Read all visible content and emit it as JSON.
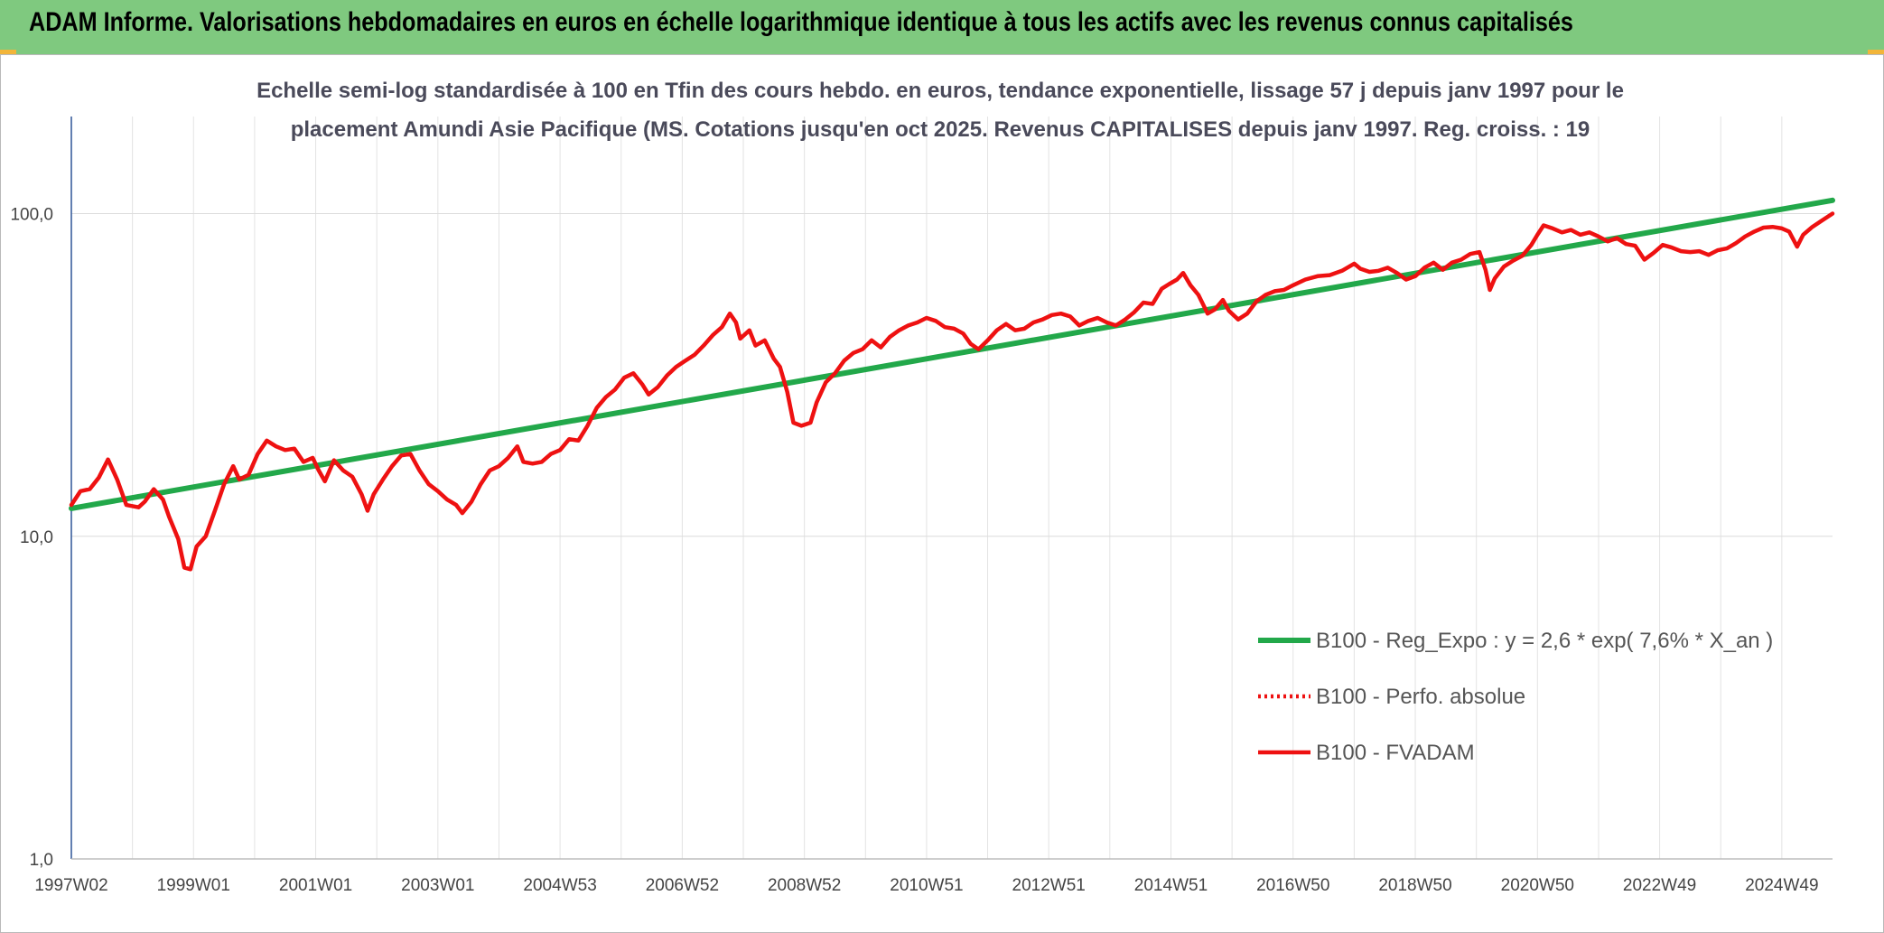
{
  "header": {
    "title": "ADAM Informe. Valorisations hebdomadaires en euros en échelle logarithmique identique à tous les actifs avec les revenus connus capitalisés",
    "color": "#7fc97f"
  },
  "chart_data": {
    "type": "line",
    "title_lines": [
      "Echelle semi-log standardisée à 100 en Tfin des cours hebdo. en euros, tendance exponentielle, lissage 57 j depuis janv 1997 pour le",
      "placement Amundi Asie Pacifique (MS. Cotations jusqu'en oct 2025. Revenus CAPITALISES depuis janv 1997. Reg. croiss. : 19"
    ],
    "yscale": "log",
    "ylim": [
      1,
      200
    ],
    "y_ticks": [
      {
        "value": 1,
        "label": "1,0"
      },
      {
        "value": 10,
        "label": "10,0"
      },
      {
        "value": 100,
        "label": "100,0"
      }
    ],
    "xlim": [
      1997.0,
      2025.83
    ],
    "x_ticks": [
      {
        "year": 1997.0,
        "label": "1997W02"
      },
      {
        "year": 1999.0,
        "label": "1999W01"
      },
      {
        "year": 2001.0,
        "label": "2001W01"
      },
      {
        "year": 2003.0,
        "label": "2003W01"
      },
      {
        "year": 2005.0,
        "label": "2004W53"
      },
      {
        "year": 2007.0,
        "label": "2006W52"
      },
      {
        "year": 2009.0,
        "label": "2008W52"
      },
      {
        "year": 2011.0,
        "label": "2010W51"
      },
      {
        "year": 2013.0,
        "label": "2012W51"
      },
      {
        "year": 2015.0,
        "label": "2014W51"
      },
      {
        "year": 2017.0,
        "label": "2016W50"
      },
      {
        "year": 2019.0,
        "label": "2018W50"
      },
      {
        "year": 2021.0,
        "label": "2020W50"
      },
      {
        "year": 2023.0,
        "label": "2022W49"
      },
      {
        "year": 2025.0,
        "label": "2024W49"
      }
    ],
    "grid": true,
    "legend_position": "bottom-right",
    "series": [
      {
        "name": "B100 - Reg_Expo : y = 2,6 * exp( 7,6% *  X_an )",
        "color": "#22a84a",
        "style": "solid",
        "points": [
          [
            1997.0,
            12.2
          ],
          [
            2025.83,
            110.0
          ]
        ]
      },
      {
        "name": "B100 - Perfo. absolue",
        "color": "#ee1111",
        "style": "dotted",
        "points": []
      },
      {
        "name": "B100 - FVADAM",
        "color": "#ee1111",
        "style": "solid",
        "points": [
          [
            1997.0,
            12.5
          ],
          [
            1997.15,
            13.8
          ],
          [
            1997.3,
            14.0
          ],
          [
            1997.45,
            15.2
          ],
          [
            1997.6,
            17.3
          ],
          [
            1997.75,
            15.0
          ],
          [
            1997.9,
            12.5
          ],
          [
            1998.1,
            12.3
          ],
          [
            1998.2,
            12.8
          ],
          [
            1998.35,
            14.0
          ],
          [
            1998.5,
            13.0
          ],
          [
            1998.6,
            11.5
          ],
          [
            1998.75,
            9.8
          ],
          [
            1998.85,
            8.0
          ],
          [
            1998.95,
            7.9
          ],
          [
            1999.05,
            9.3
          ],
          [
            1999.2,
            10.0
          ],
          [
            1999.35,
            12.0
          ],
          [
            1999.5,
            14.5
          ],
          [
            1999.65,
            16.5
          ],
          [
            1999.75,
            15.0
          ],
          [
            1999.9,
            15.5
          ],
          [
            2000.05,
            18.0
          ],
          [
            2000.2,
            19.8
          ],
          [
            2000.35,
            19.0
          ],
          [
            2000.5,
            18.5
          ],
          [
            2000.65,
            18.7
          ],
          [
            2000.8,
            17.0
          ],
          [
            2000.95,
            17.5
          ],
          [
            2001.05,
            16.0
          ],
          [
            2001.15,
            14.8
          ],
          [
            2001.3,
            17.2
          ],
          [
            2001.45,
            16.0
          ],
          [
            2001.6,
            15.3
          ],
          [
            2001.75,
            13.5
          ],
          [
            2001.85,
            12.0
          ],
          [
            2001.95,
            13.5
          ],
          [
            2002.1,
            15.0
          ],
          [
            2002.25,
            16.5
          ],
          [
            2002.4,
            17.8
          ],
          [
            2002.55,
            18.0
          ],
          [
            2002.7,
            16.0
          ],
          [
            2002.85,
            14.5
          ],
          [
            2003.0,
            13.8
          ],
          [
            2003.15,
            13.0
          ],
          [
            2003.3,
            12.5
          ],
          [
            2003.4,
            11.8
          ],
          [
            2003.55,
            12.8
          ],
          [
            2003.7,
            14.5
          ],
          [
            2003.85,
            16.0
          ],
          [
            2004.0,
            16.5
          ],
          [
            2004.15,
            17.5
          ],
          [
            2004.3,
            19.0
          ],
          [
            2004.4,
            17.0
          ],
          [
            2004.55,
            16.8
          ],
          [
            2004.7,
            17.0
          ],
          [
            2004.85,
            18.0
          ],
          [
            2005.0,
            18.5
          ],
          [
            2005.15,
            20.0
          ],
          [
            2005.3,
            19.8
          ],
          [
            2005.45,
            22.0
          ],
          [
            2005.6,
            25.0
          ],
          [
            2005.75,
            27.0
          ],
          [
            2005.9,
            28.5
          ],
          [
            2006.05,
            31.0
          ],
          [
            2006.2,
            32.0
          ],
          [
            2006.35,
            29.5
          ],
          [
            2006.45,
            27.5
          ],
          [
            2006.6,
            29.0
          ],
          [
            2006.75,
            31.5
          ],
          [
            2006.9,
            33.5
          ],
          [
            2007.05,
            35.0
          ],
          [
            2007.2,
            36.5
          ],
          [
            2007.35,
            39.0
          ],
          [
            2007.5,
            42.0
          ],
          [
            2007.65,
            44.5
          ],
          [
            2007.78,
            49.0
          ],
          [
            2007.88,
            46.0
          ],
          [
            2007.95,
            41.0
          ],
          [
            2008.1,
            43.5
          ],
          [
            2008.2,
            39.0
          ],
          [
            2008.35,
            40.5
          ],
          [
            2008.5,
            35.5
          ],
          [
            2008.6,
            33.5
          ],
          [
            2008.72,
            28.0
          ],
          [
            2008.82,
            22.5
          ],
          [
            2008.95,
            22.0
          ],
          [
            2009.1,
            22.5
          ],
          [
            2009.2,
            26.0
          ],
          [
            2009.35,
            30.0
          ],
          [
            2009.5,
            32.0
          ],
          [
            2009.65,
            35.0
          ],
          [
            2009.8,
            37.0
          ],
          [
            2009.95,
            38.0
          ],
          [
            2010.1,
            40.5
          ],
          [
            2010.25,
            38.5
          ],
          [
            2010.4,
            41.5
          ],
          [
            2010.55,
            43.5
          ],
          [
            2010.7,
            45.0
          ],
          [
            2010.85,
            46.0
          ],
          [
            2011.0,
            47.5
          ],
          [
            2011.15,
            46.5
          ],
          [
            2011.3,
            44.5
          ],
          [
            2011.45,
            44.0
          ],
          [
            2011.6,
            42.5
          ],
          [
            2011.72,
            39.5
          ],
          [
            2011.85,
            38.0
          ],
          [
            2012.0,
            40.5
          ],
          [
            2012.15,
            43.5
          ],
          [
            2012.3,
            45.5
          ],
          [
            2012.45,
            43.5
          ],
          [
            2012.6,
            44.0
          ],
          [
            2012.75,
            46.0
          ],
          [
            2012.9,
            47.0
          ],
          [
            2013.05,
            48.5
          ],
          [
            2013.2,
            49.0
          ],
          [
            2013.35,
            48.0
          ],
          [
            2013.5,
            45.0
          ],
          [
            2013.65,
            46.5
          ],
          [
            2013.8,
            47.5
          ],
          [
            2013.95,
            46.0
          ],
          [
            2014.1,
            45.0
          ],
          [
            2014.25,
            47.0
          ],
          [
            2014.4,
            49.5
          ],
          [
            2014.55,
            53.0
          ],
          [
            2014.7,
            52.5
          ],
          [
            2014.85,
            58.5
          ],
          [
            2014.97,
            60.5
          ],
          [
            2015.1,
            62.5
          ],
          [
            2015.2,
            65.5
          ],
          [
            2015.32,
            60.0
          ],
          [
            2015.45,
            56.0
          ],
          [
            2015.6,
            49.0
          ],
          [
            2015.72,
            50.5
          ],
          [
            2015.85,
            54.0
          ],
          [
            2015.95,
            50.0
          ],
          [
            2016.1,
            47.0
          ],
          [
            2016.25,
            49.0
          ],
          [
            2016.4,
            53.5
          ],
          [
            2016.55,
            56.0
          ],
          [
            2016.7,
            57.5
          ],
          [
            2016.85,
            58.0
          ],
          [
            2017.0,
            60.0
          ],
          [
            2017.2,
            62.5
          ],
          [
            2017.4,
            64.0
          ],
          [
            2017.6,
            64.5
          ],
          [
            2017.8,
            66.5
          ],
          [
            2018.0,
            70.0
          ],
          [
            2018.1,
            67.5
          ],
          [
            2018.25,
            66.0
          ],
          [
            2018.4,
            66.5
          ],
          [
            2018.55,
            68.0
          ],
          [
            2018.7,
            65.5
          ],
          [
            2018.85,
            62.5
          ],
          [
            2019.0,
            64.0
          ],
          [
            2019.15,
            68.0
          ],
          [
            2019.3,
            70.5
          ],
          [
            2019.45,
            67.0
          ],
          [
            2019.6,
            70.5
          ],
          [
            2019.75,
            72.0
          ],
          [
            2019.9,
            75.0
          ],
          [
            2020.05,
            76.0
          ],
          [
            2020.15,
            67.0
          ],
          [
            2020.22,
            58.0
          ],
          [
            2020.3,
            63.0
          ],
          [
            2020.45,
            68.5
          ],
          [
            2020.6,
            71.5
          ],
          [
            2020.75,
            74.0
          ],
          [
            2020.9,
            80.0
          ],
          [
            2021.0,
            86.0
          ],
          [
            2021.1,
            92.0
          ],
          [
            2021.25,
            90.0
          ],
          [
            2021.4,
            87.5
          ],
          [
            2021.55,
            89.0
          ],
          [
            2021.7,
            86.0
          ],
          [
            2021.85,
            87.5
          ],
          [
            2022.0,
            85.0
          ],
          [
            2022.15,
            82.0
          ],
          [
            2022.3,
            84.0
          ],
          [
            2022.45,
            80.5
          ],
          [
            2022.6,
            79.5
          ],
          [
            2022.75,
            72.0
          ],
          [
            2022.9,
            75.5
          ],
          [
            2023.05,
            80.0
          ],
          [
            2023.2,
            78.5
          ],
          [
            2023.35,
            76.5
          ],
          [
            2023.5,
            76.0
          ],
          [
            2023.65,
            76.5
          ],
          [
            2023.8,
            74.5
          ],
          [
            2023.95,
            77.0
          ],
          [
            2024.1,
            78.0
          ],
          [
            2024.25,
            81.0
          ],
          [
            2024.4,
            85.0
          ],
          [
            2024.55,
            88.0
          ],
          [
            2024.7,
            90.5
          ],
          [
            2024.85,
            91.0
          ],
          [
            2025.0,
            90.0
          ],
          [
            2025.12,
            88.0
          ],
          [
            2025.25,
            79.0
          ],
          [
            2025.35,
            86.0
          ],
          [
            2025.5,
            91.0
          ],
          [
            2025.65,
            95.0
          ],
          [
            2025.83,
            100.0
          ]
        ]
      }
    ]
  }
}
